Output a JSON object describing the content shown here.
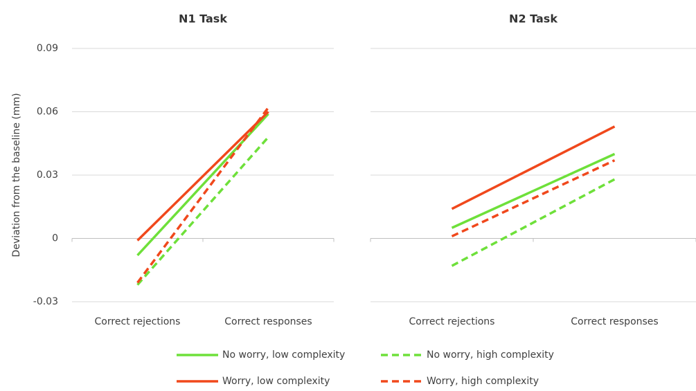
{
  "chart_data": [
    {
      "type": "line",
      "title": "N1 Task",
      "ylabel": "Deviation from the baseline (mm)",
      "categories": [
        "Correct rejections",
        "Correct responses"
      ],
      "ylim": [
        -0.03,
        0.09
      ],
      "yticks": [
        -0.03,
        0,
        0.03,
        0.06,
        0.09
      ],
      "grid": true,
      "series": [
        {
          "name": "No worry, low complexity",
          "color": "#6ee03a",
          "dash": false,
          "values": [
            -0.008,
            0.059
          ]
        },
        {
          "name": "No worry, high complexity",
          "color": "#6ee03a",
          "dash": true,
          "values": [
            -0.022,
            0.048
          ]
        },
        {
          "name": "Worry, low complexity",
          "color": "#f0481c",
          "dash": false,
          "values": [
            -0.001,
            0.06
          ]
        },
        {
          "name": "Worry, high complexity",
          "color": "#f0481c",
          "dash": true,
          "values": [
            -0.021,
            0.062
          ]
        }
      ]
    },
    {
      "type": "line",
      "title": "N2 Task",
      "categories": [
        "Correct rejections",
        "Correct responses"
      ],
      "ylim": [
        -0.03,
        0.09
      ],
      "yticks": [
        -0.03,
        0,
        0.03,
        0.06,
        0.09
      ],
      "grid": true,
      "series": [
        {
          "color": "#6ee03a",
          "dash": false,
          "values": [
            0.005,
            0.04
          ]
        },
        {
          "color": "#6ee03a",
          "dash": true,
          "values": [
            -0.013,
            0.028
          ]
        },
        {
          "color": "#f0481c",
          "dash": false,
          "values": [
            0.014,
            0.053
          ]
        },
        {
          "color": "#f0481c",
          "dash": true,
          "values": [
            0.001,
            0.037
          ]
        }
      ]
    }
  ]
}
